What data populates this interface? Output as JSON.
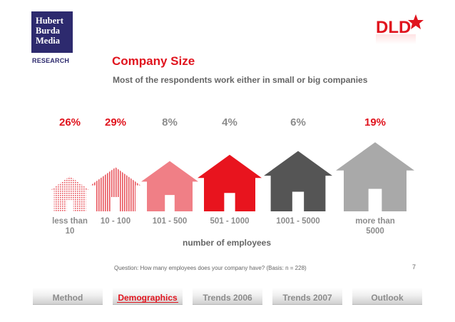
{
  "brand": {
    "logo_lines": [
      "Hubert",
      "Burda",
      "Media"
    ],
    "research_label": "RESEARCH",
    "partner_logo": "DLD"
  },
  "slide": {
    "title": "Company Size",
    "subtitle": "Most of the respondents work either in small or big companies",
    "question": "Question: How many employees does your company have? (Basis: n = 228)",
    "page_number": "7"
  },
  "chart_data": {
    "type": "pictograph-bar",
    "xlabel": "number of employees",
    "categories": [
      [
        "less than",
        "10"
      ],
      [
        "10 - 100"
      ],
      [
        "101 - 500"
      ],
      [
        "501 - 1000"
      ],
      [
        "1001 - 5000"
      ],
      [
        "more than",
        "5000"
      ]
    ],
    "values": [
      26,
      29,
      8,
      4,
      6,
      19
    ],
    "value_labels": [
      "26%",
      "29%",
      "8%",
      "4%",
      "6%",
      "19%"
    ],
    "label_colors": [
      "#e0141e",
      "#e0141e",
      "#8c8c8c",
      "#8c8c8c",
      "#8c8c8c",
      "#e0141e"
    ],
    "house_fills": [
      "dots-red",
      "stripes-red",
      "#f07f86",
      "#e8141e",
      "#555555",
      "#a9a9a9"
    ]
  },
  "nav": {
    "items": [
      "Method",
      "Demographics",
      "Trends 2006",
      "Trends 2007",
      "Outlook"
    ],
    "active_index": 1
  },
  "colors": {
    "accent": "#e0141e",
    "logo_bg": "#2d2a6e",
    "text_gray": "#666666"
  }
}
